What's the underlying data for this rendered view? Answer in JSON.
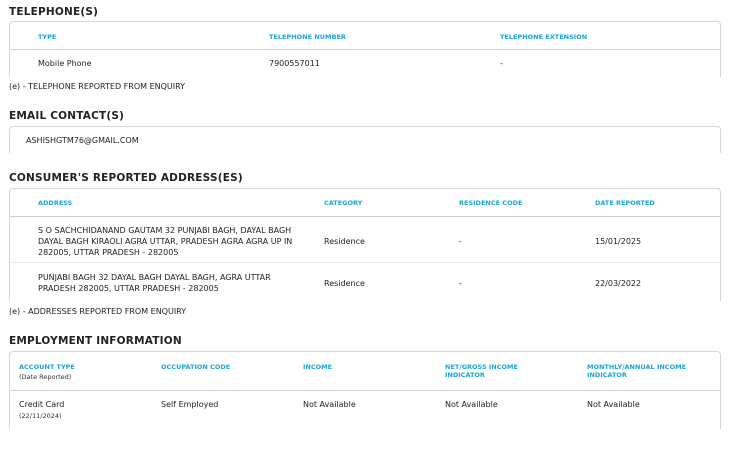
{
  "telephones": {
    "title": "TELEPHONE(S)",
    "headers": [
      "TYPE",
      "TELEPHONE NUMBER",
      "TELEPHONE EXTENSION"
    ],
    "rows": [
      [
        "Mobile Phone",
        "7900557011",
        "-"
      ]
    ],
    "note": "(e) - TELEPHONE REPORTED FROM ENQUIRY"
  },
  "emails": {
    "title": "EMAIL CONTACT(S)",
    "items": [
      "ASHISHGTM76@GMAIL.COM"
    ]
  },
  "addresses": {
    "title": "CONSUMER'S REPORTED ADDRESS(ES)",
    "headers": [
      "ADDRESS",
      "CATEGORY",
      "RESIDENCE CODE",
      "DATE REPORTED"
    ],
    "rows": [
      [
        "S O SACHCHIDANAND GAUTAM 32 PUNJABI BAGH, DAYAL BAGH DAYAL BAGH KIRAOLI AGRA UTTAR, PRADESH AGRA AGRA UP IN 282005, UTTAR PRADESH - 282005",
        "Residence",
        "-",
        "15/01/2025"
      ],
      [
        "PUNJABI BAGH 32 DAYAL BAGH DAYAL BAGH, AGRA UTTAR PRADESH 282005, UTTAR PRADESH - 282005",
        "Residence",
        "-",
        "22/03/2022"
      ]
    ],
    "note": "(e) - ADDRESSES REPORTED FROM ENQUIRY"
  },
  "employment": {
    "title": "EMPLOYMENT INFORMATION",
    "headers": [
      "ACCOUNT TYPE",
      "OCCUPATION CODE",
      "INCOME",
      "NET/GROSS INCOME INDICATOR",
      "MONTHLY/ANNUAL INCOME INDICATOR"
    ],
    "header_sub": "(Date Reported)",
    "rows": [
      {
        "account_type": "Credit Card",
        "date": "(22/11/2024)",
        "occupation": "Self Employed",
        "income": "Not Available",
        "net_gross": "Not Available",
        "monthly_annual": "Not Available"
      }
    ]
  },
  "colors": {
    "header_text": "#1aa6d4"
  }
}
